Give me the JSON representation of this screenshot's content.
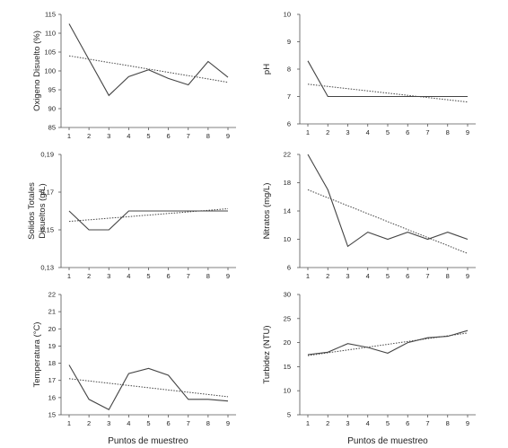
{
  "x_axis_label": "Puntos de muestreo",
  "chart_data": [
    {
      "type": "line",
      "ylabel": "Oxigeno Disuelto (%)",
      "categories": [
        "1",
        "2",
        "3",
        "4",
        "5",
        "6",
        "7",
        "8",
        "9"
      ],
      "yticks": [
        "85",
        "90",
        "95",
        "100",
        "105",
        "110",
        "115"
      ],
      "ylim": [
        85,
        115
      ],
      "series": [
        {
          "values": [
            112.5,
            103,
            93.5,
            98.5,
            100.3,
            98,
            96.3,
            102.5,
            98.3
          ]
        },
        {
          "values": [
            104,
            97
          ],
          "x": [
            1,
            9
          ],
          "style": "dotted"
        }
      ]
    },
    {
      "type": "line",
      "ylabel": "pH",
      "categories": [
        "1",
        "2",
        "3",
        "4",
        "5",
        "6",
        "7",
        "8",
        "9"
      ],
      "yticks": [
        "6",
        "7",
        "8",
        "9",
        "10"
      ],
      "ylim": [
        6,
        10
      ],
      "series": [
        {
          "values": [
            8.3,
            7,
            7,
            7,
            7,
            7,
            7,
            7,
            7
          ]
        },
        {
          "values": [
            7.45,
            6.8
          ],
          "x": [
            1,
            9
          ],
          "style": "dotted"
        }
      ]
    },
    {
      "type": "line",
      "ylabel": "Solidos Totales Disueltos (g/L)",
      "ylabel_lines": [
        "Solidos Totales",
        "Disueltos (g/L)"
      ],
      "categories": [
        "1",
        "2",
        "3",
        "4",
        "5",
        "6",
        "7",
        "8",
        "9"
      ],
      "yticks": [
        "0,13",
        "0,15",
        "0,17",
        "0,19"
      ],
      "ytick_values": [
        0.13,
        0.15,
        0.17,
        0.19
      ],
      "ylim": [
        0.13,
        0.19
      ],
      "series": [
        {
          "values": [
            0.16,
            0.15,
            0.15,
            0.16,
            0.16,
            0.16,
            0.16,
            0.16,
            0.16
          ]
        },
        {
          "values": [
            0.1545,
            0.1612
          ],
          "x": [
            1,
            9
          ],
          "style": "dotted"
        }
      ]
    },
    {
      "type": "line",
      "ylabel": "Nitratos (mg/L)",
      "categories": [
        "1",
        "2",
        "3",
        "4",
        "5",
        "6",
        "7",
        "8",
        "9"
      ],
      "yticks": [
        "6",
        "10",
        "14",
        "18",
        "22"
      ],
      "ylim": [
        6,
        22
      ],
      "series": [
        {
          "values": [
            22,
            17,
            9,
            11,
            10,
            11,
            10,
            11,
            10
          ]
        },
        {
          "values": [
            17,
            8
          ],
          "x": [
            1,
            9
          ],
          "style": "dotted"
        }
      ]
    },
    {
      "type": "line",
      "ylabel": "Temperatura (°C)",
      "categories": [
        "1",
        "2",
        "3",
        "4",
        "5",
        "6",
        "7",
        "8",
        "9"
      ],
      "yticks": [
        "15",
        "16",
        "17",
        "18",
        "19",
        "20",
        "21",
        "22"
      ],
      "ylim": [
        15,
        22
      ],
      "series": [
        {
          "values": [
            17.9,
            15.9,
            15.3,
            17.4,
            17.7,
            17.3,
            15.9,
            15.9,
            15.8
          ]
        },
        {
          "values": [
            17.1,
            16.05
          ],
          "x": [
            1,
            9
          ],
          "style": "dotted"
        }
      ]
    },
    {
      "type": "line",
      "ylabel": "Turbidez (NTU)",
      "categories": [
        "1",
        "2",
        "3",
        "4",
        "5",
        "6",
        "7",
        "8",
        "9"
      ],
      "yticks": [
        "5",
        "10",
        "15",
        "20",
        "25",
        "30"
      ],
      "ylim": [
        5,
        30
      ],
      "series": [
        {
          "values": [
            17.5,
            18,
            19.8,
            19,
            17.8,
            20,
            21,
            21.3,
            22.5
          ]
        },
        {
          "values": [
            17.3,
            22
          ],
          "x": [
            1,
            9
          ],
          "style": "dotted"
        }
      ]
    }
  ]
}
